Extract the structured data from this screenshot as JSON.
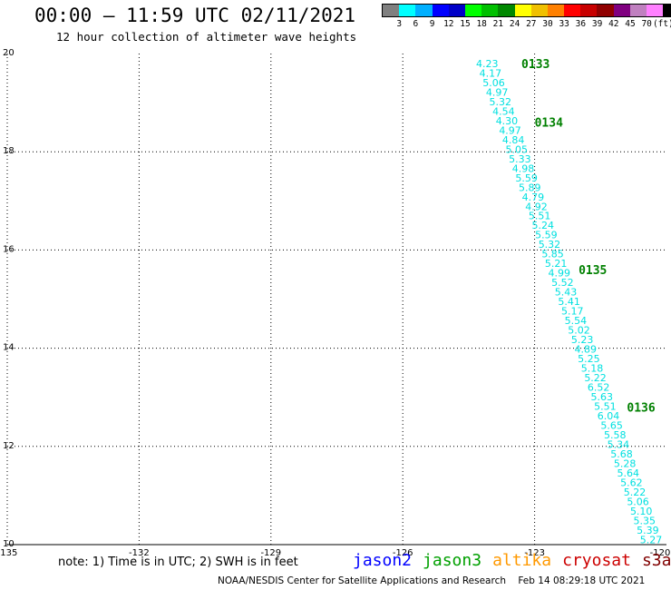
{
  "title": "00:00 – 11:59 UTC 02/11/2021",
  "subtitle": "12 hour collection of altimeter wave heights",
  "color_scale": {
    "unit": "(ft)",
    "swatches": [
      "#808080",
      "#00ffff",
      "#00b0ff",
      "#0000ff",
      "#0000c8",
      "#00ff00",
      "#00c000",
      "#008800",
      "#ffff00",
      "#f0c000",
      "#ff8000",
      "#ff0000",
      "#c80000",
      "#900000",
      "#800080",
      "#c080c0",
      "#ff80ff",
      "#000000"
    ],
    "labels": [
      "3",
      "6",
      "9",
      "12",
      "15",
      "18",
      "21",
      "24",
      "27",
      "30",
      "33",
      "36",
      "39",
      "42",
      "45",
      "70"
    ]
  },
  "map": {
    "lon_labels": [
      "-135",
      "-132",
      "-129",
      "-126",
      "-123",
      "-120"
    ],
    "lat_labels": [
      "20",
      "18",
      "16",
      "14",
      "12",
      "10"
    ],
    "lon_range": [
      -135,
      -120
    ],
    "lat_range": [
      10,
      20
    ]
  },
  "passes": [
    {
      "label": "0133",
      "lon": -123.3,
      "lat": 19.8
    },
    {
      "label": "0134",
      "lon": -123.0,
      "lat": 18.6
    },
    {
      "label": "0135",
      "lon": -122.0,
      "lat": 15.6
    },
    {
      "label": "0136",
      "lon": -120.9,
      "lat": 12.8
    }
  ],
  "wave_heights": [
    "4.23",
    "4.17",
    "5.06",
    "4.97",
    "5.32",
    "4.54",
    "4.30",
    "4.97",
    "4.84",
    "5.05",
    "5.33",
    "4.98",
    "5.59",
    "5.89",
    "4.79",
    "4.92",
    "5.51",
    "5.24",
    "5.59",
    "5.32",
    "5.85",
    "5.21",
    "4.99",
    "5.52",
    "5.43",
    "5.41",
    "5.17",
    "5.54",
    "5.02",
    "5.23",
    "4.89",
    "5.25",
    "5.18",
    "5.22",
    "6.52",
    "5.63",
    "5.51",
    "6.04",
    "5.65",
    "5.58",
    "5.34",
    "5.68",
    "5.28",
    "5.64",
    "5.62",
    "5.22",
    "5.06",
    "5.10",
    "5.35",
    "5.39",
    "5.27"
  ],
  "wave_track": {
    "start": {
      "lon": -124.08,
      "lat": 19.8
    },
    "end": {
      "lon": -120.35,
      "lat": 10.1
    }
  },
  "colors": {
    "wave_text": "#00e0e0",
    "pass_label": "#008000",
    "grid": "#000000"
  },
  "note": "note: 1) Time is in UTC; 2) SWH is in feet",
  "legend": [
    {
      "name": "jason2",
      "color": "#0000ff"
    },
    {
      "name": "jason3",
      "color": "#00a000"
    },
    {
      "name": "altika",
      "color": "#ff9900"
    },
    {
      "name": "cryosat",
      "color": "#cc0000"
    },
    {
      "name": "s3a",
      "color": "#800000"
    }
  ],
  "credit": "NOAA/NESDIS Center for Satellite Applications and Research    Feb 14 08:29:18 UTC 2021"
}
